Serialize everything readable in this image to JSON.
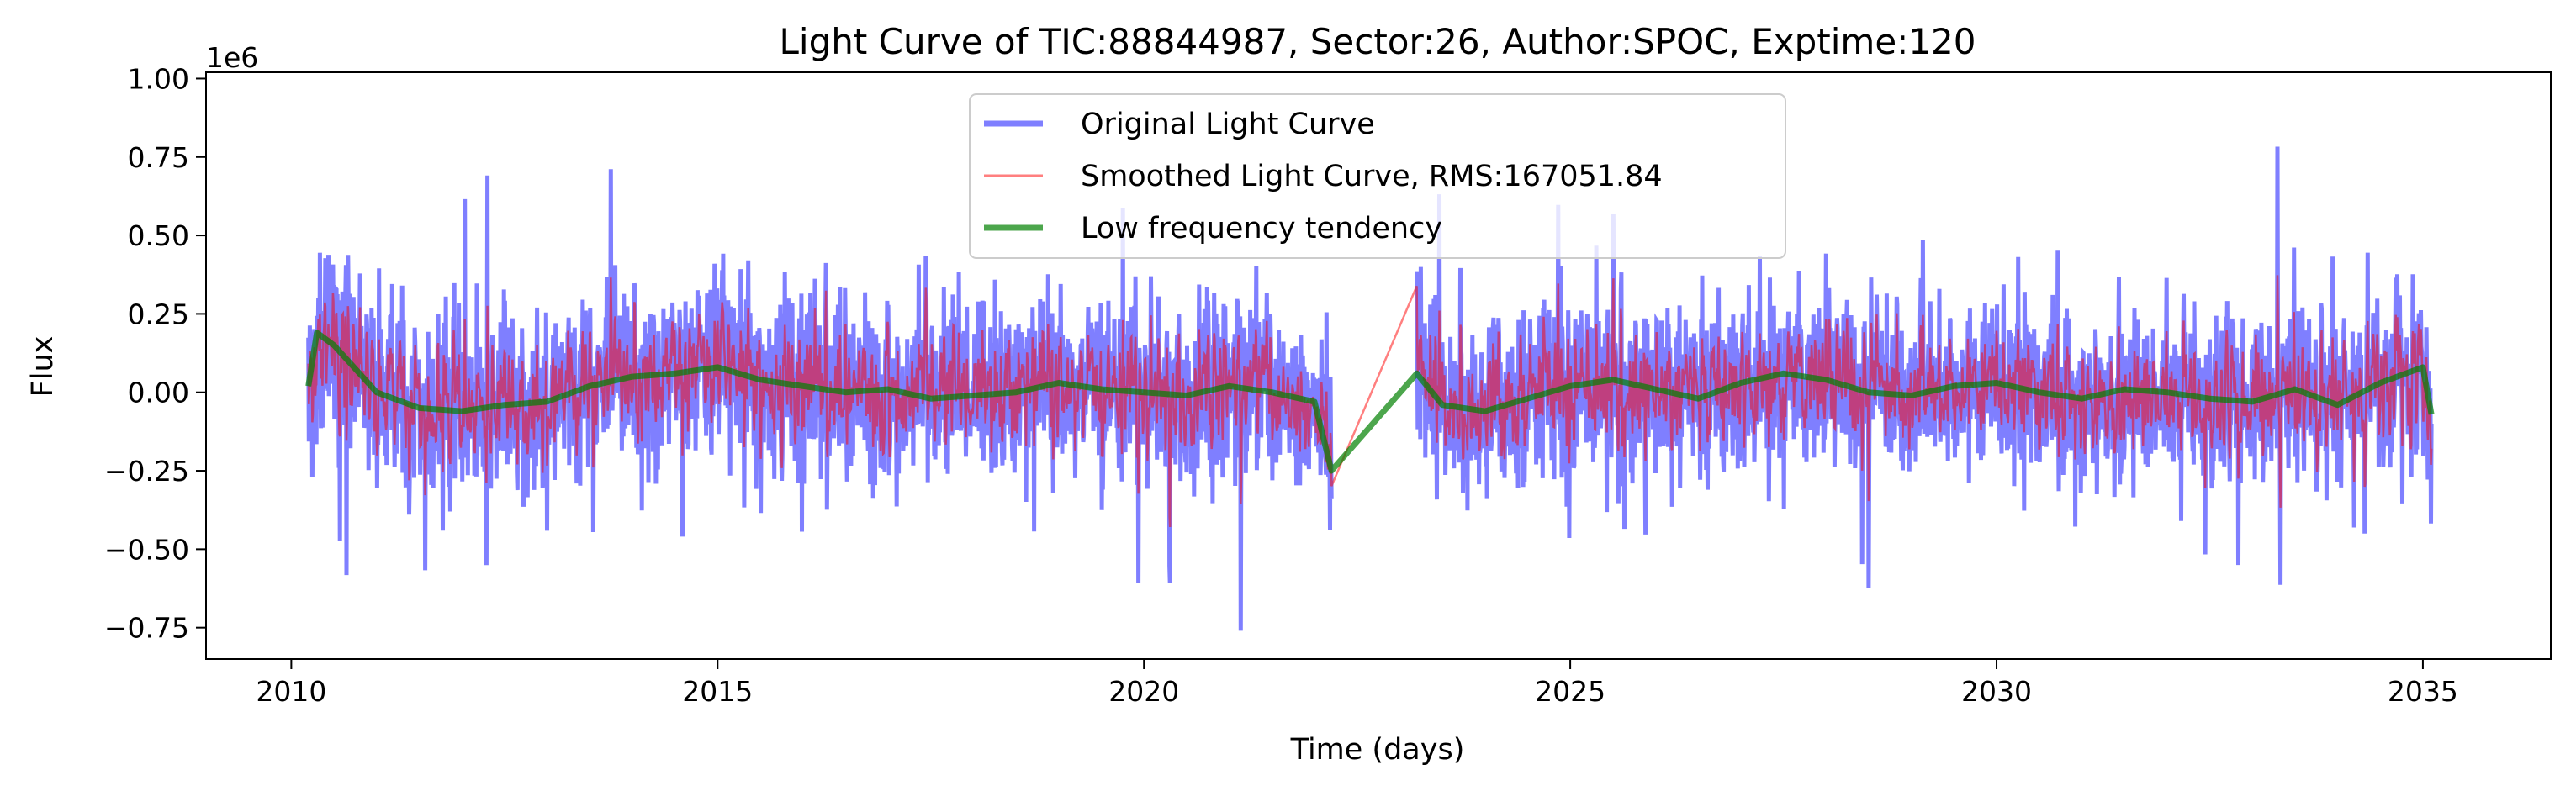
{
  "chart_data": {
    "type": "line",
    "title": "Light Curve of TIC:88844987, Sector:26, Author:SPOC, Exptime:120",
    "xlabel": "Time (days)",
    "ylabel": "Flux",
    "y_offset_label": "1e6",
    "xlim": [
      2009.0,
      2036.5
    ],
    "ylim": [
      -0.85,
      1.02
    ],
    "x_ticks": [
      2010,
      2015,
      2020,
      2025,
      2030,
      2035
    ],
    "x_tick_labels": [
      "2010",
      "2015",
      "2020",
      "2025",
      "2030",
      "2035"
    ],
    "y_ticks": [
      -0.75,
      -0.5,
      -0.25,
      0.0,
      0.25,
      0.5,
      0.75,
      1.0
    ],
    "y_tick_labels": [
      "−0.75",
      "−0.50",
      "−0.25",
      "0.00",
      "0.25",
      "0.50",
      "0.75",
      "1.00"
    ],
    "grid": false,
    "legend_position": "top-center",
    "segments": [
      [
        2010.2,
        2022.2
      ],
      [
        2023.2,
        2035.1
      ]
    ],
    "series": [
      {
        "name": "Original Light Curve",
        "color": "#0000ff",
        "opacity": 0.5,
        "amplitude_1e6": 0.25,
        "max_1e6": 0.93,
        "min_1e6": -0.76
      },
      {
        "name": "Smoothed Light Curve, RMS:167051.84",
        "color": "#ff0000",
        "opacity": 0.5,
        "rms": 167051.84
      },
      {
        "name": "Low frequency tendency",
        "color": "#008000",
        "opacity": 0.7,
        "x": [
          2010.2,
          2010.3,
          2010.5,
          2011.0,
          2011.5,
          2012.0,
          2012.5,
          2013.0,
          2013.5,
          2014.0,
          2014.5,
          2015.0,
          2015.5,
          2016.0,
          2016.5,
          2017.0,
          2017.5,
          2018.0,
          2018.5,
          2019.0,
          2019.5,
          2020.0,
          2020.5,
          2021.0,
          2021.5,
          2022.0,
          2022.2,
          2023.2,
          2023.5,
          2024.0,
          2024.5,
          2025.0,
          2025.5,
          2026.0,
          2026.5,
          2027.0,
          2027.5,
          2028.0,
          2028.5,
          2029.0,
          2029.5,
          2030.0,
          2030.5,
          2031.0,
          2031.5,
          2032.0,
          2032.5,
          2033.0,
          2033.5,
          2034.0,
          2034.5,
          2035.0,
          2035.1
        ],
        "y": [
          0.02,
          0.19,
          0.15,
          0.0,
          -0.05,
          -0.06,
          -0.04,
          -0.03,
          0.02,
          0.05,
          0.06,
          0.08,
          0.04,
          0.02,
          0.0,
          0.01,
          -0.02,
          -0.01,
          0.0,
          0.03,
          0.01,
          0.0,
          -0.01,
          0.02,
          0.0,
          -0.03,
          -0.25,
          0.06,
          -0.04,
          -0.06,
          -0.02,
          0.02,
          0.04,
          0.01,
          -0.02,
          0.03,
          0.06,
          0.04,
          0.0,
          -0.01,
          0.02,
          0.03,
          0.0,
          -0.02,
          0.01,
          0.0,
          -0.02,
          -0.03,
          0.01,
          -0.04,
          0.03,
          0.08,
          -0.07
        ]
      }
    ]
  }
}
